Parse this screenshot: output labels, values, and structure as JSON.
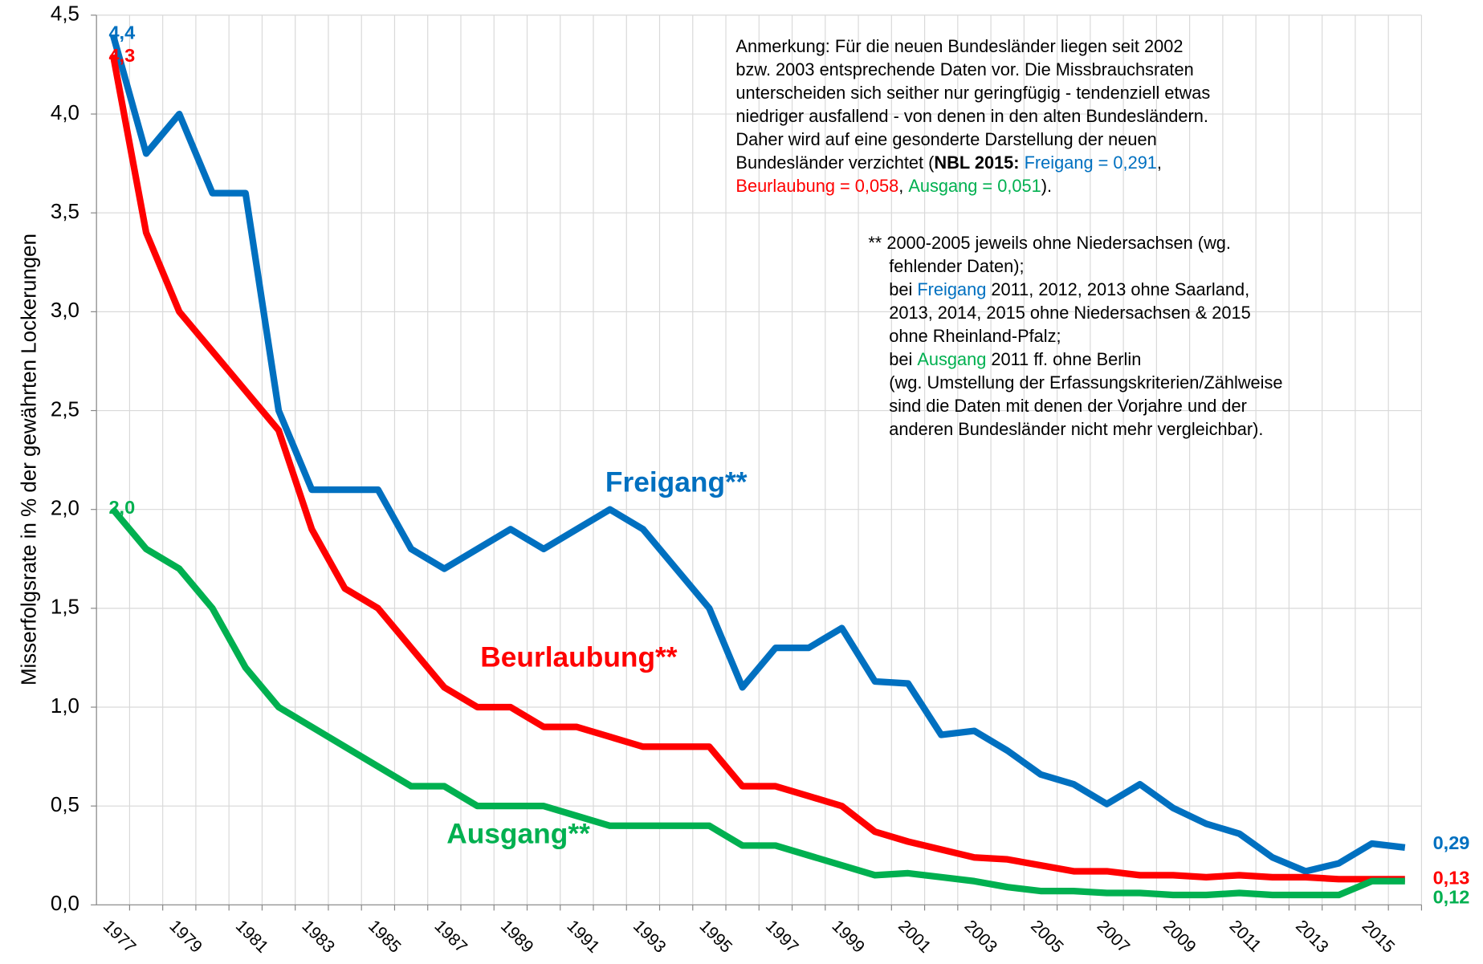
{
  "chart_data": {
    "type": "line",
    "y_label": "Misserfolgsrate in % der gewährten Lockerungen",
    "categories": [
      "1977",
      null,
      "1979",
      null,
      "1981",
      null,
      "1983",
      null,
      "1985",
      null,
      "1987",
      null,
      "1989",
      null,
      "1991",
      null,
      "1993",
      null,
      "1995",
      null,
      "1997",
      null,
      "1999",
      null,
      "2001",
      null,
      "2003",
      null,
      "2005",
      null,
      "2007",
      null,
      "2009",
      null,
      "2011",
      null,
      "2013",
      null,
      "2015",
      null
    ],
    "ylim": [
      0,
      4.5
    ],
    "yticks": [
      {
        "value": 0,
        "label": "0,0"
      },
      {
        "value": 0.5,
        "label": "0,5"
      },
      {
        "value": 1,
        "label": "1,0"
      },
      {
        "value": 1.5,
        "label": "1,5"
      },
      {
        "value": 2,
        "label": "2,0"
      },
      {
        "value": 2.5,
        "label": "2,5"
      },
      {
        "value": 3,
        "label": "3,0"
      },
      {
        "value": 3.5,
        "label": "3,5"
      },
      {
        "value": 4,
        "label": "4,0"
      },
      {
        "value": 4.5,
        "label": "4,5"
      }
    ],
    "grid": true,
    "series": [
      {
        "name": "Freigang**",
        "color": "#0070c0",
        "values": [
          4.4,
          3.8,
          4.0,
          3.6,
          3.6,
          2.5,
          2.1,
          2.1,
          2.1,
          1.8,
          1.7,
          1.8,
          1.9,
          1.8,
          1.9,
          2.0,
          1.9,
          1.7,
          1.5,
          1.1,
          1.3,
          1.3,
          1.4,
          1.13,
          1.12,
          0.86,
          0.88,
          0.78,
          0.66,
          0.61,
          0.51,
          0.61,
          0.49,
          0.41,
          0.36,
          0.24,
          0.17,
          0.21,
          0.31,
          0.29
        ],
        "value_labels": [
          "4,4",
          null,
          null,
          null,
          null,
          null,
          null,
          null,
          null,
          null,
          null,
          null,
          null,
          null,
          null,
          null,
          null,
          null,
          null,
          null,
          null,
          null,
          null,
          null,
          null,
          null,
          null,
          null,
          null,
          null,
          null,
          null,
          null,
          null,
          null,
          null,
          null,
          null,
          null,
          "0,29"
        ]
      },
      {
        "name": "Beurlaubung**",
        "color": "#ff0000",
        "values": [
          4.3,
          3.4,
          3.0,
          2.8,
          2.6,
          2.4,
          1.9,
          1.6,
          1.5,
          1.3,
          1.1,
          1.0,
          1.0,
          0.9,
          0.9,
          0.85,
          0.8,
          0.8,
          0.8,
          0.6,
          0.6,
          0.55,
          0.5,
          0.37,
          0.32,
          0.28,
          0.24,
          0.23,
          0.2,
          0.17,
          0.17,
          0.15,
          0.15,
          0.14,
          0.15,
          0.14,
          0.14,
          0.13,
          0.13,
          0.13
        ],
        "value_labels": [
          "4,3",
          null,
          null,
          null,
          null,
          null,
          null,
          null,
          null,
          null,
          null,
          null,
          null,
          null,
          null,
          null,
          null,
          null,
          null,
          null,
          null,
          null,
          null,
          null,
          null,
          null,
          null,
          null,
          null,
          null,
          null,
          null,
          null,
          null,
          null,
          null,
          null,
          null,
          null,
          "0,13"
        ]
      },
      {
        "name": "Ausgang**",
        "color": "#00b050",
        "values": [
          2.0,
          1.8,
          1.7,
          1.5,
          1.2,
          1.0,
          0.9,
          0.8,
          0.7,
          0.6,
          0.6,
          0.5,
          0.5,
          0.5,
          0.45,
          0.4,
          0.4,
          0.4,
          0.4,
          0.3,
          0.3,
          0.25,
          0.2,
          0.15,
          0.16,
          0.14,
          0.12,
          0.09,
          0.07,
          0.07,
          0.06,
          0.06,
          0.05,
          0.05,
          0.06,
          0.05,
          0.05,
          0.05,
          0.12,
          0.12
        ],
        "value_labels": [
          "2,0",
          null,
          null,
          null,
          null,
          null,
          null,
          null,
          null,
          null,
          null,
          null,
          null,
          null,
          null,
          null,
          null,
          null,
          null,
          null,
          null,
          null,
          null,
          null,
          null,
          null,
          null,
          null,
          null,
          null,
          null,
          null,
          null,
          null,
          null,
          null,
          null,
          null,
          null,
          "0,12"
        ]
      }
    ],
    "notes": [
      {
        "lines": [
          [
            {
              "text": "Anmerkung: Für die neuen Bundesländer liegen seit 2002"
            }
          ],
          [
            {
              "text": "bzw. 2003 entsprechende Daten vor. Die Missbrauchsraten"
            }
          ],
          [
            {
              "text": "unterscheiden sich seither nur geringfügig - tendenziell etwas"
            }
          ],
          [
            {
              "text": "niedriger ausfallend - von denen in den alten Bundesländern."
            }
          ],
          [
            {
              "text": "Daher wird auf eine gesonderte Darstellung der neuen"
            }
          ],
          [
            {
              "text": "Bundesländer verzichtet ("
            },
            {
              "text": "NBL 2015:",
              "bold": true
            },
            {
              "text": " "
            },
            {
              "text": "Freigang = 0,291",
              "color": "#0070c0"
            },
            {
              "text": ","
            }
          ],
          [
            {
              "text": "Beurlaubung = 0,058",
              "color": "#ff0000"
            },
            {
              "text": ", "
            },
            {
              "text": "Ausgang = 0,051",
              "color": "#00b050"
            },
            {
              "text": ")."
            }
          ]
        ]
      },
      {
        "lines": [
          [
            {
              "text": "** 2000-2005 jeweils ohne Niedersachsen (wg."
            }
          ],
          [
            {
              "text": "fehlender Daten);"
            }
          ],
          [
            {
              "text": "bei "
            },
            {
              "text": "Freigang",
              "color": "#0070c0"
            },
            {
              "text": " 2011, 2012, 2013 ohne Saarland,"
            }
          ],
          [
            {
              "text": "2013, 2014, 2015 ohne Niedersachsen & 2015"
            }
          ],
          [
            {
              "text": "ohne Rheinland-Pfalz;"
            }
          ],
          [
            {
              "text": "bei "
            },
            {
              "text": "Ausgang",
              "color": "#00b050"
            },
            {
              "text": " 2011 ff. ohne Berlin"
            }
          ],
          [
            {
              "text": "(wg. Umstellung der Erfassungskriterien/Zählweise"
            }
          ],
          [
            {
              "text": "sind die Daten mit denen der Vorjahre und der"
            }
          ],
          [
            {
              "text": "anderen Bundesländer nicht mehr vergleichbar)."
            }
          ]
        ]
      }
    ]
  }
}
